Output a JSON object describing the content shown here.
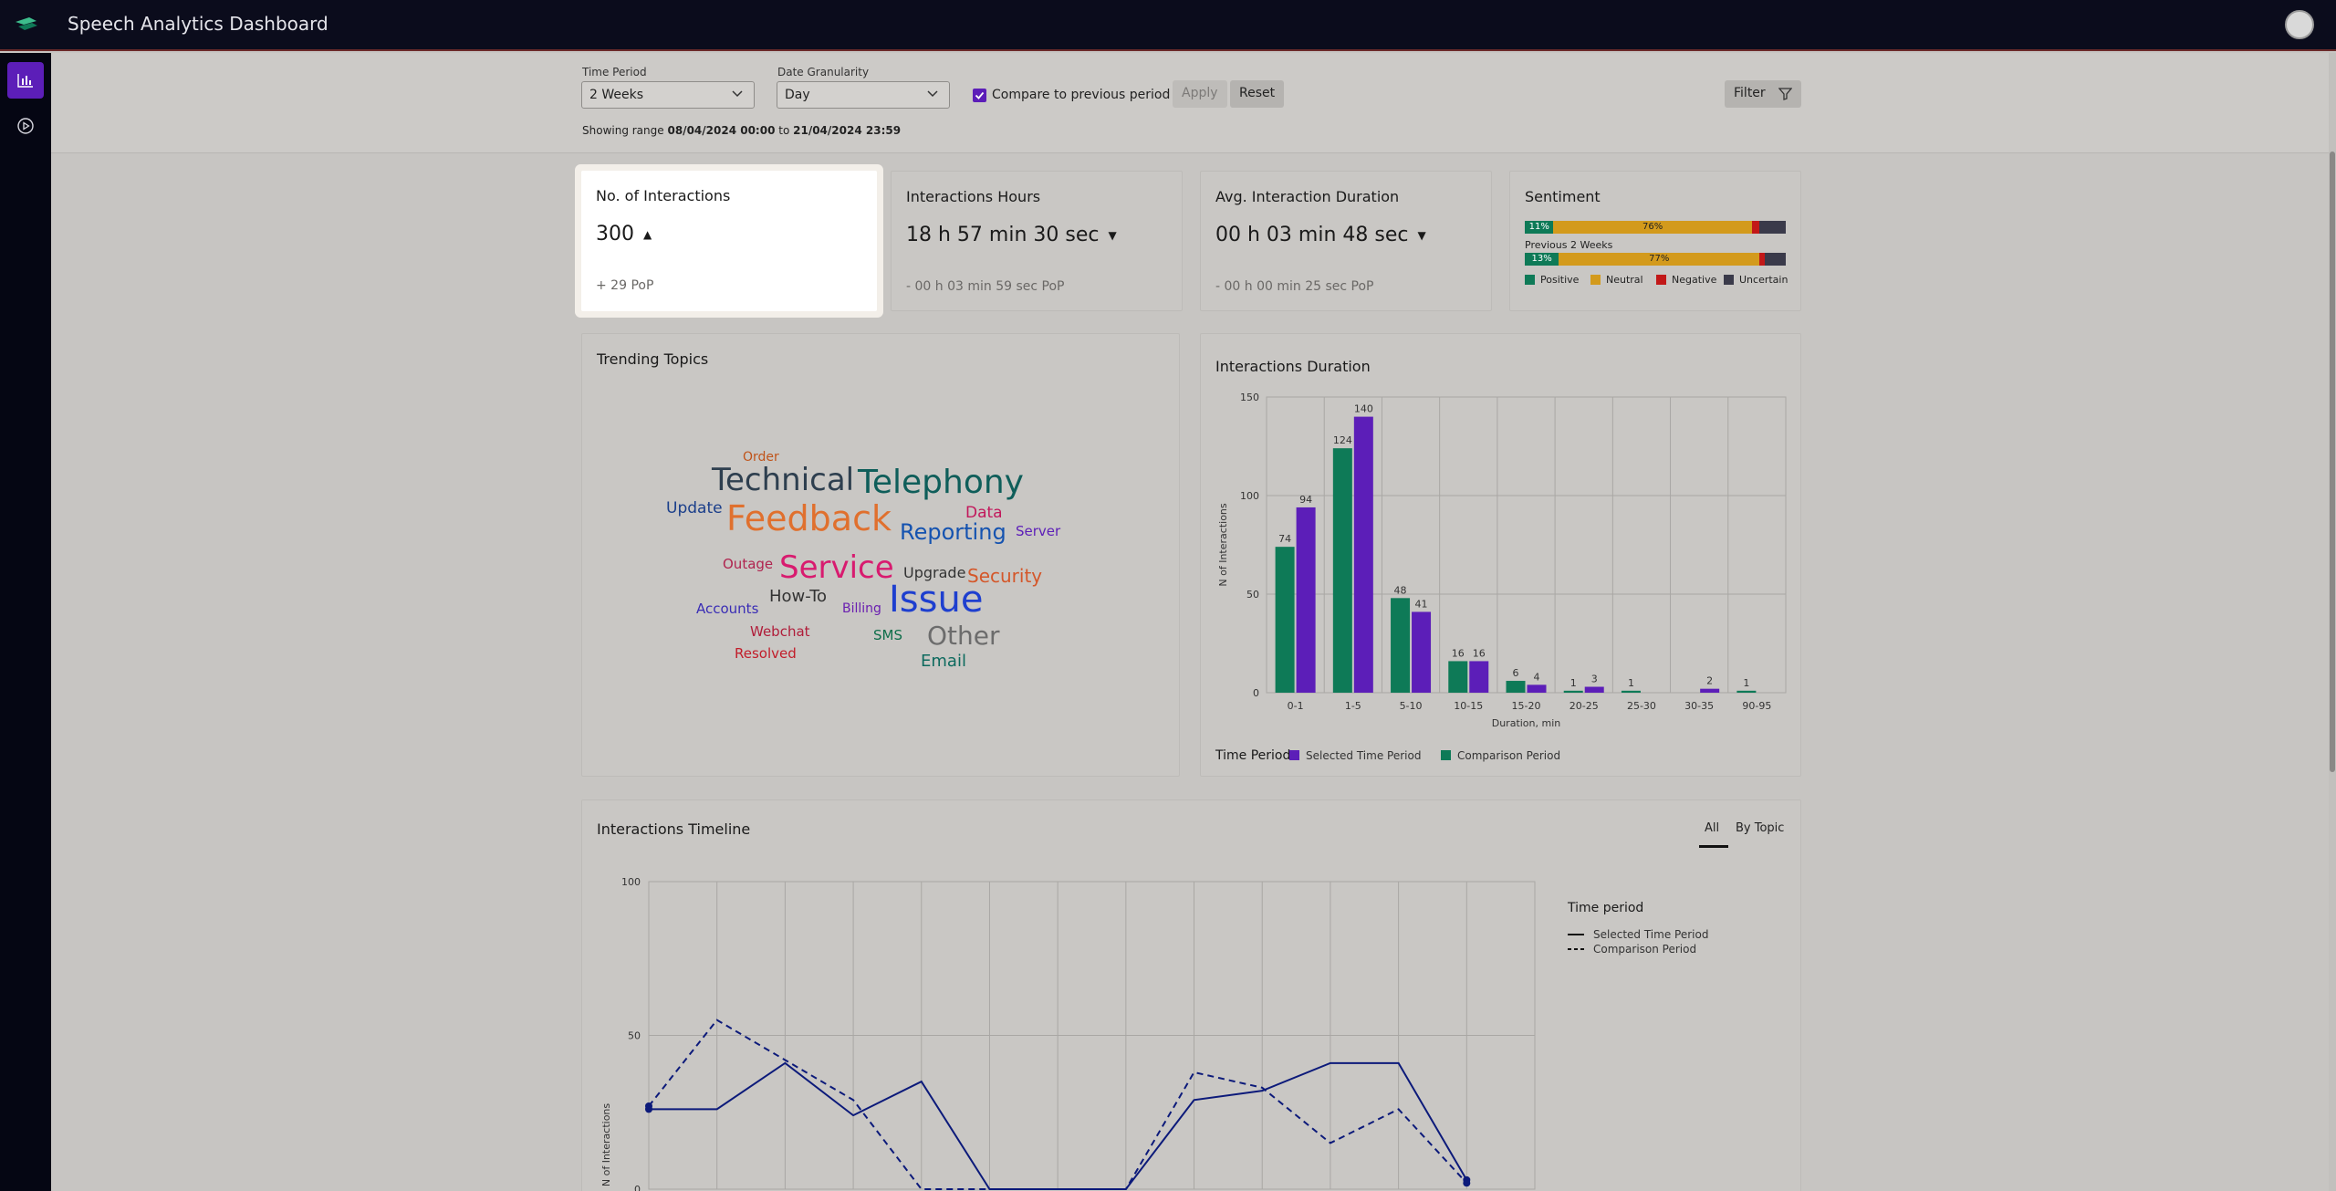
{
  "app": {
    "title": "Speech Analytics Dashboard"
  },
  "filters": {
    "time_period_label": "Time Period",
    "time_period_value": "2 Weeks",
    "granularity_label": "Date Granularity",
    "granularity_value": "Day",
    "compare_label": "Compare to previous period",
    "apply_label": "Apply",
    "reset_label": "Reset",
    "filter_label": "Filter",
    "range_prefix": "Showing range",
    "range_start": "08/04/2024 00:00",
    "range_mid": "to",
    "range_end": "21/04/2024 23:59"
  },
  "kpis": [
    {
      "title": "No. of Interactions",
      "value": "300",
      "trend": "▲",
      "sub": "+ 29 PoP"
    },
    {
      "title": "Interactions Hours",
      "value": "18 h 57 min 30 sec",
      "trend": "▼",
      "sub": "- 00 h 03 min 59 sec PoP"
    },
    {
      "title": "Avg. Interaction Duration",
      "value": "00 h 03 min 48 sec",
      "trend": "▼",
      "sub": "- 00 h 00 min 25 sec PoP"
    }
  ],
  "sentiment": {
    "title": "Sentiment",
    "current": [
      {
        "label": "11%",
        "pct": 11,
        "color": "#0e7a57"
      },
      {
        "label": "76%",
        "pct": 76,
        "color": "#d39a1c"
      },
      {
        "label": "",
        "pct": 3,
        "color": "#c21818"
      },
      {
        "label": "",
        "pct": 10,
        "color": "#3a3a4a"
      }
    ],
    "previous_label": "Previous 2 Weeks",
    "previous": [
      {
        "label": "13%",
        "pct": 13,
        "color": "#0e7a57"
      },
      {
        "label": "77%",
        "pct": 77,
        "color": "#d39a1c"
      },
      {
        "label": "",
        "pct": 2,
        "color": "#c21818"
      },
      {
        "label": "",
        "pct": 8,
        "color": "#3a3a4a"
      }
    ],
    "legend": [
      {
        "label": "Positive",
        "color": "#0e7a57"
      },
      {
        "label": "Neutral",
        "color": "#d39a1c"
      },
      {
        "label": "Negative",
        "color": "#c21818"
      },
      {
        "label": "Uncertain",
        "color": "#3a3a4a"
      }
    ]
  },
  "trending": {
    "title": "Trending Topics",
    "words": [
      {
        "text": "Order",
        "size": 14,
        "color": "#c0541a"
      },
      {
        "text": "Technical",
        "size": 34,
        "color": "#2e3f4f"
      },
      {
        "text": "Telephony",
        "size": 36,
        "color": "#0f5e5a"
      },
      {
        "text": "Update",
        "size": 17,
        "color": "#1a3e8a"
      },
      {
        "text": "Feedback",
        "size": 38,
        "color": "#e0702e"
      },
      {
        "text": "Data",
        "size": 17,
        "color": "#c2185b"
      },
      {
        "text": "Server",
        "size": 15,
        "color": "#5c1eb8"
      },
      {
        "text": "Reporting",
        "size": 24,
        "color": "#1553b0"
      },
      {
        "text": "Outage",
        "size": 15,
        "color": "#b0244f"
      },
      {
        "text": "Service",
        "size": 34,
        "color": "#d81b6f"
      },
      {
        "text": "Upgrade",
        "size": 16,
        "color": "#333333"
      },
      {
        "text": "Security",
        "size": 20,
        "color": "#d4572a"
      },
      {
        "text": "How-To",
        "size": 18,
        "color": "#333333"
      },
      {
        "text": "Accounts",
        "size": 15,
        "color": "#3a2db5"
      },
      {
        "text": "Billing",
        "size": 14,
        "color": "#6a1fb0"
      },
      {
        "text": "Issue",
        "size": 40,
        "color": "#1e3fcf"
      },
      {
        "text": "Webchat",
        "size": 15,
        "color": "#b01d3a"
      },
      {
        "text": "SMS",
        "size": 15,
        "color": "#0e6e4a"
      },
      {
        "text": "Other",
        "size": 28,
        "color": "#6c6c6c"
      },
      {
        "text": "Resolved",
        "size": 15,
        "color": "#c21d2a"
      },
      {
        "text": "Email",
        "size": 18,
        "color": "#0d6a5e"
      }
    ]
  },
  "duration_chart": {
    "title": "Interactions Duration",
    "chart_data": {
      "type": "bar",
      "categories": [
        "0-1",
        "1-5",
        "5-10",
        "10-15",
        "15-20",
        "20-25",
        "25-30",
        "30-35",
        "90-95"
      ],
      "series": [
        {
          "name": "Comparison Period",
          "values": [
            74,
            124,
            48,
            16,
            6,
            1,
            1,
            0,
            1
          ],
          "color": "#0e7a57"
        },
        {
          "name": "Selected Time Period",
          "values": [
            94,
            140,
            41,
            16,
            4,
            3,
            0,
            2,
            0
          ],
          "color": "#5c1eb8"
        }
      ],
      "xlabel": "Duration, min",
      "ylabel": "N of Interactions",
      "ylim": [
        0,
        150
      ],
      "yticks": [
        0,
        50,
        100,
        150
      ],
      "grid": true
    },
    "legend_title": "Time Period"
  },
  "timeline": {
    "title": "Interactions Timeline",
    "tabs": [
      {
        "label": "All",
        "active": true
      },
      {
        "label": "By Topic",
        "active": false
      }
    ],
    "legend_title": "Time period",
    "chart_data": {
      "type": "line",
      "x": [
        1,
        2,
        3,
        4,
        5,
        6,
        7,
        8,
        9,
        10,
        11,
        12,
        13
      ],
      "series": [
        {
          "name": "Selected Time Period",
          "values": [
            26,
            26,
            41,
            24,
            35,
            0,
            0,
            0,
            29,
            32,
            41,
            41,
            3
          ],
          "style": "solid"
        },
        {
          "name": "Comparison Period",
          "values": [
            27,
            55,
            42,
            29,
            0,
            0,
            0,
            0,
            38,
            33,
            15,
            26,
            2
          ],
          "style": "dashed"
        }
      ],
      "ylabel": "N of Interactions",
      "ylim": [
        0,
        100
      ],
      "yticks": [
        0,
        50,
        100
      ],
      "grid": true
    }
  }
}
